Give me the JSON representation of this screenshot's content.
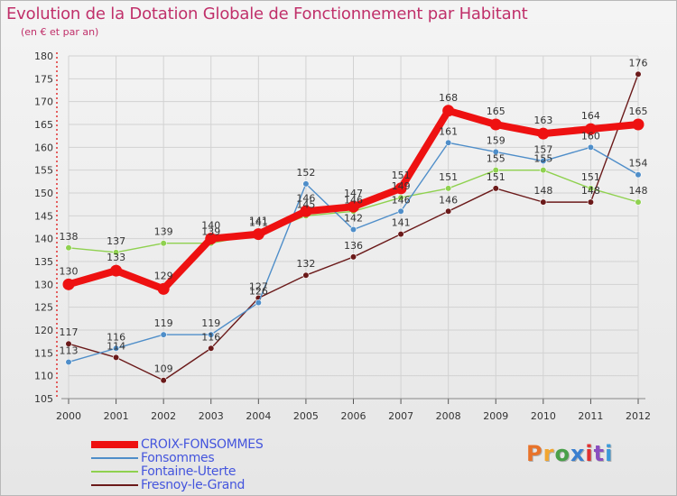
{
  "title": "Evolution de la Dotation Globale de Fonctionnement par Habitant",
  "subtitle": "(en € et par an)",
  "logo": {
    "text": "Proxiti",
    "colors": [
      "#e8732a",
      "#f2a630",
      "#4aa04a",
      "#3a7fd0",
      "#e03030",
      "#8a4fc0",
      "#3a9ad9"
    ]
  },
  "chart_data": {
    "type": "line",
    "title": "Evolution de la Dotation Globale de Fonctionnement par Habitant",
    "subtitle": "(en € et par an)",
    "xlabel": "",
    "ylabel": "",
    "x": [
      "2000",
      "2001",
      "2002",
      "2003",
      "2004",
      "2005",
      "2006",
      "2007",
      "2008",
      "2009",
      "2010",
      "2011",
      "2012"
    ],
    "ylim": [
      105,
      180
    ],
    "yticks": [
      105,
      110,
      115,
      120,
      125,
      130,
      135,
      140,
      145,
      150,
      155,
      160,
      165,
      170,
      175,
      180
    ],
    "grid": true,
    "legend_position": "bottom-left",
    "series": [
      {
        "name": "CROIX-FONSOMMES",
        "color": "#ee1111",
        "values": [
          130,
          133,
          129,
          140,
          141,
          146,
          147,
          151,
          168,
          165,
          163,
          164,
          165
        ]
      },
      {
        "name": "Fonsommes",
        "color": "#4f8ec9",
        "values": [
          113,
          116,
          119,
          119,
          126,
          152,
          142,
          146,
          161,
          159,
          157,
          160,
          154
        ]
      },
      {
        "name": "Fontaine-Uterte",
        "color": "#8fd14f",
        "values": [
          138,
          137,
          139,
          139,
          141,
          145,
          146,
          149,
          151,
          155,
          155,
          151,
          148
        ]
      },
      {
        "name": "Fresnoy-le-Grand",
        "color": "#6b1a1a",
        "values": [
          117,
          114,
          109,
          116,
          127,
          132,
          136,
          141,
          146,
          151,
          148,
          148,
          176
        ]
      }
    ]
  }
}
